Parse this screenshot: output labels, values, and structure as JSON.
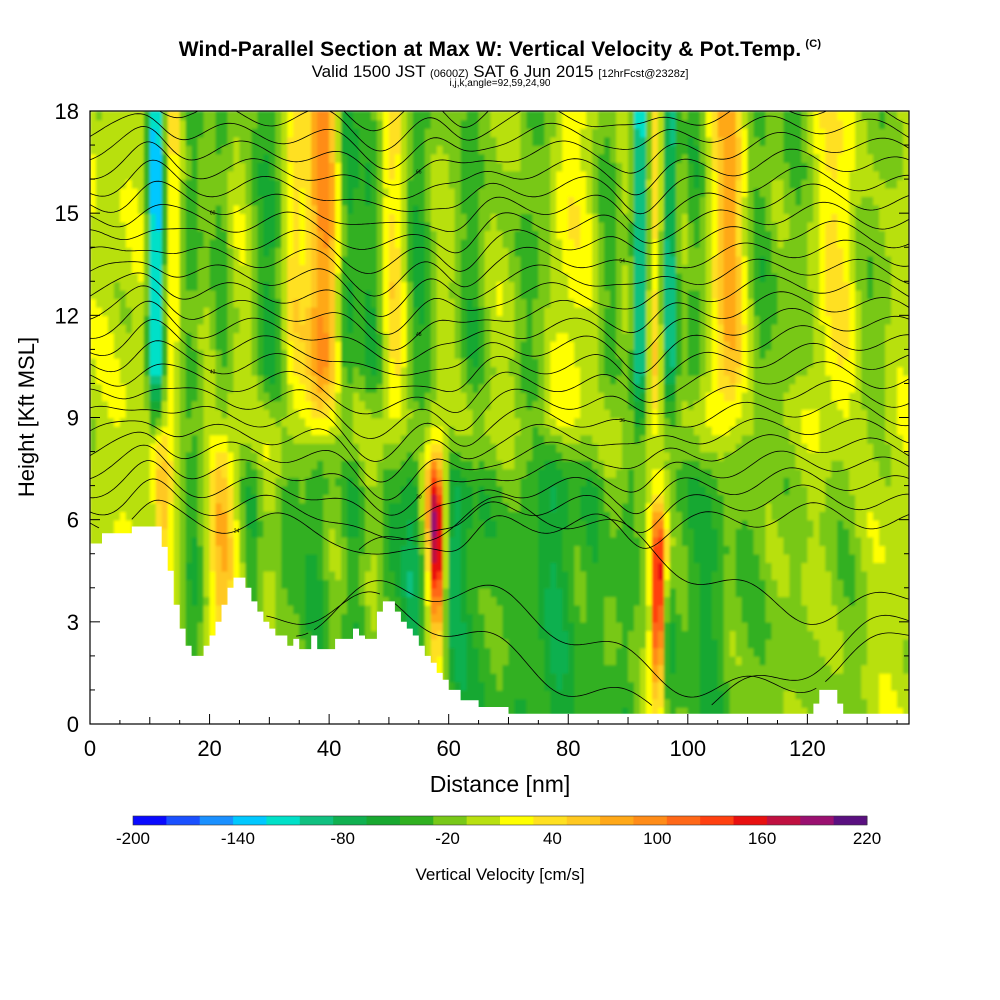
{
  "header": {
    "title": "Wind-Parallel Section at Max W: Vertical Velocity & Pot.Temp.",
    "title_mark": "(C)",
    "valid_prefix": "Valid 1500 JST",
    "valid_utc": "(0600Z)",
    "valid_date": "SAT 6 Jun 2015",
    "forecast_info": "[12hrFcst@2328z]",
    "indices": "i,j,k,angle=92,59,24,90"
  },
  "chart_data": {
    "type": "heatmap",
    "xlabel": "Distance [nm]",
    "ylabel": "Height [Kft MSL]",
    "xlim": [
      0,
      137
    ],
    "ylim": [
      0,
      18
    ],
    "x_ticks": [
      0,
      20,
      40,
      60,
      80,
      100,
      120
    ],
    "y_ticks": [
      0,
      3,
      6,
      9,
      12,
      15,
      18
    ],
    "colorbar": {
      "label": "Vertical Velocity [cm/s]",
      "min": -200,
      "max": 220,
      "step": 20,
      "tick_labels": [
        "-200",
        "-140",
        "-80",
        "-20",
        "40",
        "100",
        "160",
        "220"
      ],
      "colors": [
        "#0a0aff",
        "#1a50ff",
        "#1a90ff",
        "#00c8ff",
        "#00e0c8",
        "#10c080",
        "#10b050",
        "#18a830",
        "#30b020",
        "#78c818",
        "#b8e010",
        "#ffff00",
        "#ffe020",
        "#ffc820",
        "#ffa818",
        "#ff8c18",
        "#ff6818",
        "#ff4010",
        "#e81010",
        "#c01040",
        "#9a1070",
        "#5a1080"
      ]
    },
    "features": [
      {
        "type": "updraft",
        "x": 58,
        "z_min": 3,
        "z_max": 8,
        "peak": 180
      },
      {
        "type": "updraft",
        "x": 95,
        "z_min": 0.5,
        "z_max": 6,
        "peak": 180
      },
      {
        "type": "downdraft",
        "x": 11,
        "z_min": 9,
        "z_max": 18,
        "peak": -140
      },
      {
        "type": "downdraft",
        "x": 92,
        "z_min": 9,
        "z_max": 18,
        "peak": -120
      },
      {
        "type": "downdraft",
        "x": 97,
        "z_min": 9,
        "z_max": 18,
        "peak": -100
      },
      {
        "type": "updraft",
        "x": 39,
        "z_min": 10,
        "z_max": 18,
        "peak": 80
      },
      {
        "type": "updraft",
        "x": 107,
        "z_min": 12,
        "z_max": 18,
        "peak": 60
      }
    ],
    "terrain": {
      "x": [
        0,
        2,
        5,
        7,
        10,
        12,
        13,
        14,
        15,
        16,
        17,
        18,
        19,
        20,
        21,
        22,
        23,
        24,
        25,
        26,
        27,
        28,
        29,
        30,
        31,
        32,
        33,
        34,
        35,
        36,
        37,
        38,
        39,
        40,
        41,
        42,
        43,
        44,
        45,
        46,
        47,
        48,
        49,
        50,
        51,
        52,
        53,
        54,
        55,
        56,
        57,
        58,
        59,
        60,
        62,
        65,
        70,
        72,
        75,
        80,
        85,
        90,
        95,
        100,
        105,
        110,
        115,
        120,
        121,
        122,
        123,
        124,
        125,
        126,
        128,
        130,
        133,
        137
      ],
      "z": [
        5.3,
        5.6,
        5.6,
        5.8,
        5.8,
        5.2,
        4.5,
        3.5,
        2.8,
        2.3,
        2.0,
        2.0,
        2.3,
        2.6,
        3.0,
        3.5,
        4.0,
        4.3,
        4.3,
        4.0,
        3.6,
        3.3,
        3.0,
        2.8,
        2.6,
        2.6,
        2.3,
        2.5,
        2.2,
        2.2,
        2.6,
        2.2,
        2.2,
        2.2,
        2.5,
        2.5,
        2.5,
        2.8,
        2.6,
        2.5,
        2.5,
        3.3,
        3.6,
        3.6,
        3.3,
        3.0,
        2.8,
        2.6,
        2.3,
        2.0,
        1.8,
        1.5,
        1.3,
        1.0,
        0.7,
        0.5,
        0.3,
        0.3,
        0.3,
        0.3,
        0.3,
        0.3,
        0.3,
        0.3,
        0.3,
        0.3,
        0.3,
        0.3,
        0.6,
        1.0,
        1.0,
        1.0,
        0.6,
        0.3,
        0.3,
        0.3,
        0.3,
        0.3
      ]
    },
    "theta_contours": {
      "levels": [
        24,
        26,
        28,
        30,
        32,
        34,
        36,
        38,
        40,
        42,
        44,
        46,
        48,
        50,
        52,
        54,
        56,
        58,
        60,
        62,
        64,
        66,
        68,
        70,
        72
      ],
      "label_values": [
        "24",
        "26",
        "28",
        "30",
        "32",
        "34",
        "36",
        "38",
        "40",
        "42",
        "44",
        "46",
        "48",
        "50",
        "52",
        "54",
        "56",
        "58",
        "60",
        "62",
        "64",
        "66",
        "68",
        "70",
        "72"
      ]
    }
  }
}
